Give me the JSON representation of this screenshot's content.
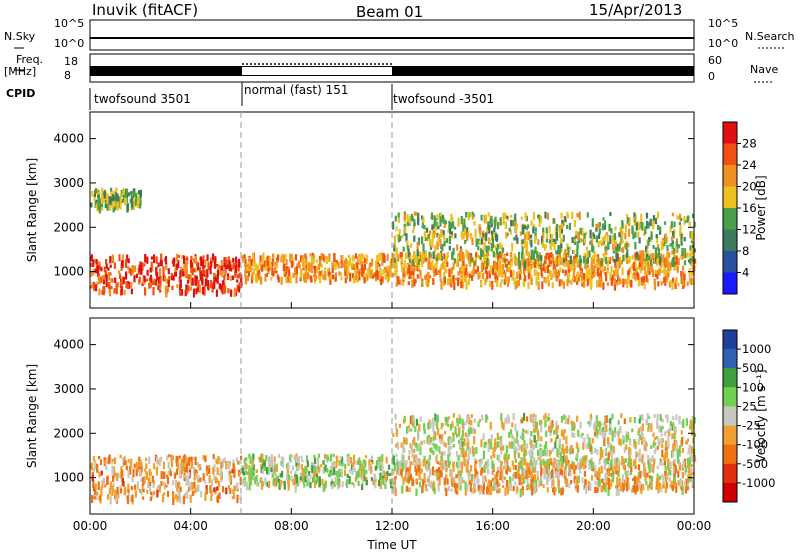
{
  "header": {
    "station": "Inuvik (fitACF)",
    "beam": "Beam 01",
    "date": "15/Apr/2013"
  },
  "panels": {
    "nsky": {
      "label": "N.Sky",
      "right_label": "N.Search",
      "ticks": [
        "10^5",
        "10^0"
      ],
      "right_ticks": [
        "10^5",
        "10^0"
      ]
    },
    "freq": {
      "label_line1": "Freq.",
      "label_line2": "[MHz]",
      "right_label": "Nave",
      "ticks": [
        "18",
        "8"
      ],
      "right_ticks": [
        "60",
        "0"
      ]
    },
    "cpid": {
      "label": "CPID",
      "segments": [
        {
          "name": "twofsound 3501",
          "start_hour": 0,
          "end_hour": 6
        },
        {
          "name": "normal (fast) 151",
          "start_hour": 6,
          "end_hour": 12
        },
        {
          "name": "twofsound -3501",
          "start_hour": 12,
          "end_hour": 24
        }
      ]
    }
  },
  "colors": {
    "power": [
      "#1a1aff",
      "#2a4fa0",
      "#3b7a5a",
      "#4aa04a",
      "#f0c020",
      "#f09020",
      "#f05010",
      "#e01010"
    ],
    "velocity": [
      "#2040a0",
      "#3060b0",
      "#40a040",
      "#70d050",
      "#c8c8c0",
      "#f0a030",
      "#f07010",
      "#e03010",
      "#d00000"
    ]
  },
  "chart_data": [
    {
      "type": "heatmap",
      "name": "power",
      "xlabel": "Time UT",
      "ylabel": "Slant Range [km]",
      "xlim": [
        0,
        24
      ],
      "ylim": [
        180,
        4600
      ],
      "x_ticks": [
        "00:00",
        "04:00",
        "08:00",
        "12:00",
        "16:00",
        "20:00",
        "00:00"
      ],
      "y_ticks": [
        1000,
        2000,
        3000,
        4000
      ],
      "colorbar": {
        "label": "Power [dB]",
        "ticks": [
          "28",
          "24",
          "20",
          "16",
          "12",
          "8",
          "4"
        ],
        "range": [
          0,
          32
        ]
      },
      "bands": [
        {
          "x_start": 0,
          "x_end": 6,
          "center_km": 1000,
          "width_km": 600,
          "value": 27
        },
        {
          "x_start": 0,
          "x_end": 2,
          "center_km": 2700,
          "width_km": 300,
          "value": 14
        },
        {
          "x_start": 6,
          "x_end": 12,
          "center_km": 1150,
          "width_km": 400,
          "value": 22
        },
        {
          "x_start": 12,
          "x_end": 24,
          "center_km": 1100,
          "width_km": 500,
          "value": 22
        },
        {
          "x_start": 12,
          "x_end": 24,
          "center_km": 1800,
          "width_km": 800,
          "value": 16
        }
      ]
    },
    {
      "type": "heatmap",
      "name": "velocity",
      "xlabel": "Time UT",
      "ylabel": "Slant Range [km]",
      "xlim": [
        0,
        24
      ],
      "ylim": [
        180,
        4600
      ],
      "x_ticks": [
        "00:00",
        "04:00",
        "08:00",
        "12:00",
        "16:00",
        "20:00",
        "00:00"
      ],
      "y_ticks": [
        1000,
        2000,
        3000,
        4000
      ],
      "colorbar": {
        "label": "Velocity [m s⁻¹]",
        "ticks": [
          "1000",
          "500",
          "100",
          "25",
          "-25",
          "-100",
          "-500",
          "-1000"
        ],
        "range": [
          -1250,
          1250
        ]
      },
      "bands": [
        {
          "x_start": 0,
          "x_end": 6,
          "center_km": 1050,
          "width_km": 700,
          "value": -300
        },
        {
          "x_start": 6,
          "x_end": 12,
          "center_km": 1200,
          "width_km": 500,
          "value": 100
        },
        {
          "x_start": 12,
          "x_end": 24,
          "center_km": 1100,
          "width_km": 500,
          "value": -200
        },
        {
          "x_start": 12,
          "x_end": 24,
          "center_km": 1900,
          "width_km": 800,
          "value": 0
        }
      ]
    }
  ]
}
